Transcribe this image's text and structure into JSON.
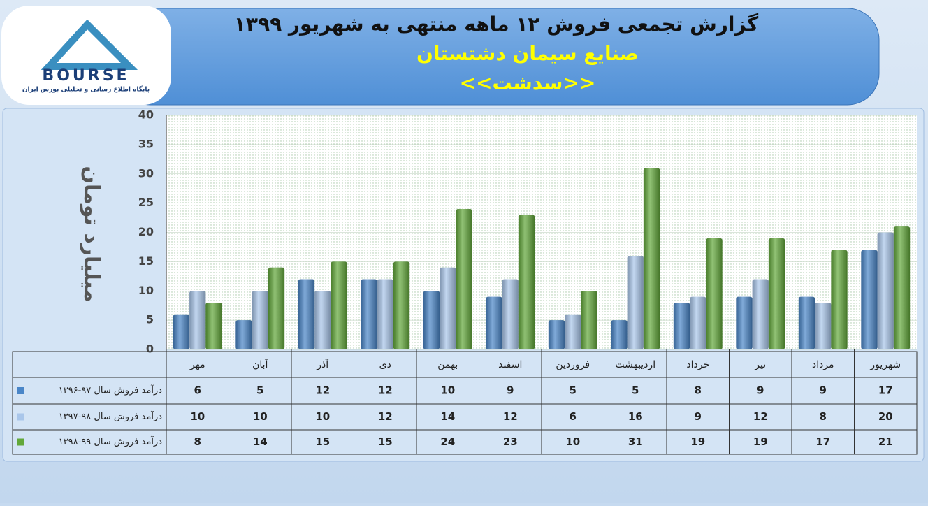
{
  "logo": {
    "name": "BOURSE",
    "tagline": "پایگاه اطلاع رسانی و تحلیلی بورس ایران"
  },
  "chart_data": {
    "type": "bar",
    "title": "گزارش تجمعی فروش ۱۲ ماهه منتهی به شهریور ۱۳۹۹",
    "subtitle": "صنایع سیمان دشتستان",
    "ticker": "<<سدشت>>",
    "y_label": "میلیارد تومان",
    "categories": [
      "مهر",
      "آبان",
      "آذر",
      "دی",
      "بهمن",
      "اسفند",
      "فروردین",
      "اردیبهشت",
      "خرداد",
      "تیر",
      "مرداد",
      "شهریور"
    ],
    "series": [
      {
        "name": "درآمد فروش سال ۹۷-۱۳۹۶",
        "color": "#4a86c8",
        "values": [
          6,
          5,
          12,
          12,
          10,
          9,
          5,
          5,
          8,
          9,
          9,
          17
        ]
      },
      {
        "name": "درآمد فروش سال ۹۸-۱۳۹۷",
        "color": "#a9c6ea",
        "values": [
          10,
          10,
          10,
          12,
          14,
          12,
          6,
          16,
          9,
          12,
          8,
          20
        ]
      },
      {
        "name": "درآمد فروش سال ۹۹-۱۳۹۸",
        "color": "#62a83a",
        "values": [
          8,
          14,
          15,
          15,
          24,
          23,
          10,
          31,
          19,
          19,
          17,
          21
        ]
      }
    ],
    "ylim": [
      0,
      40
    ],
    "yticks": [
      0,
      5,
      10,
      15,
      20,
      25,
      30,
      35,
      40
    ],
    "grid": true
  }
}
